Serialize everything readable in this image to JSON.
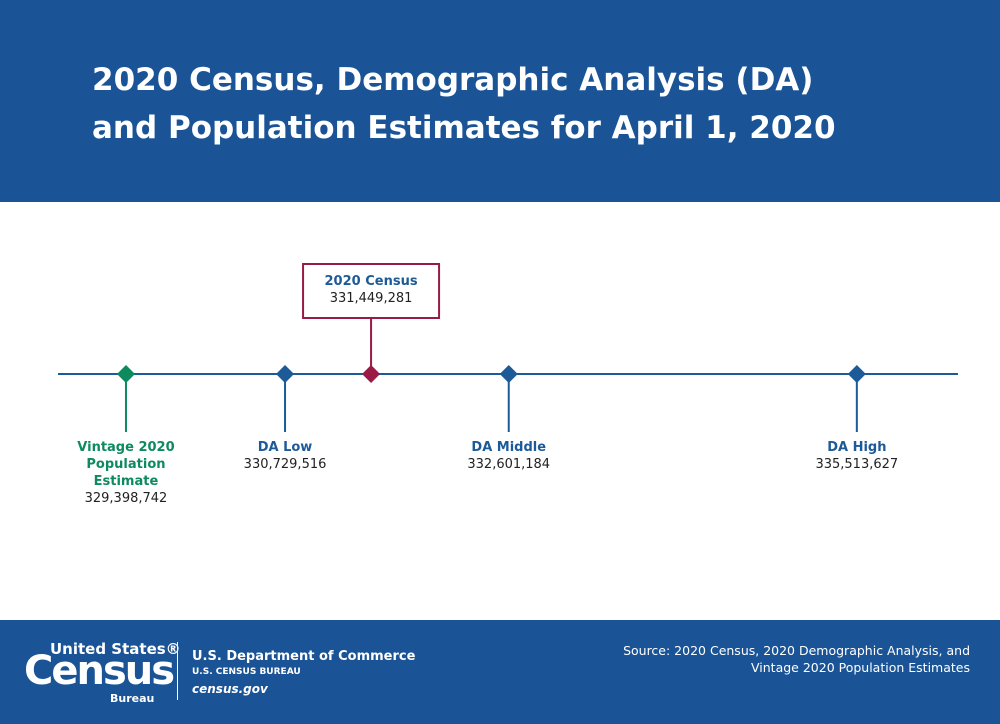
{
  "header": {
    "title": [
      "2020 Census, Demographic Analysis (DA)",
      "and Population Estimates for April 1, 2020"
    ]
  },
  "chart_data": {
    "type": "number-line",
    "categories": [
      "Vintage 2020 Population Estimate",
      "DA Low",
      "2020 Census",
      "DA Middle",
      "DA High"
    ],
    "values": [
      329398742,
      330729516,
      331449281,
      332601184,
      335513627
    ],
    "value_labels": [
      "329,398,742",
      "330,729,516",
      "331,449,281",
      "332,601,184",
      "335,513,627"
    ],
    "colors": [
      "#0e8a5f",
      "#1d5a98",
      "#9b1a45",
      "#1d5a98",
      "#1d5a98"
    ],
    "label_position": [
      "below",
      "below",
      "above",
      "below",
      "below"
    ],
    "line_color": "#1d5a98",
    "xlim": [
      328830000,
      336360000
    ]
  },
  "footer": {
    "logo_top": "United States®",
    "logo_main": "Census",
    "logo_bottom": "Bureau",
    "department": "U.S. Department of Commerce",
    "bureau": "U.S. CENSUS BUREAU",
    "website": "census.gov",
    "source": "Source: 2020 Census, 2020 Demographic Analysis, and Vintage 2020 Population Estimates"
  }
}
